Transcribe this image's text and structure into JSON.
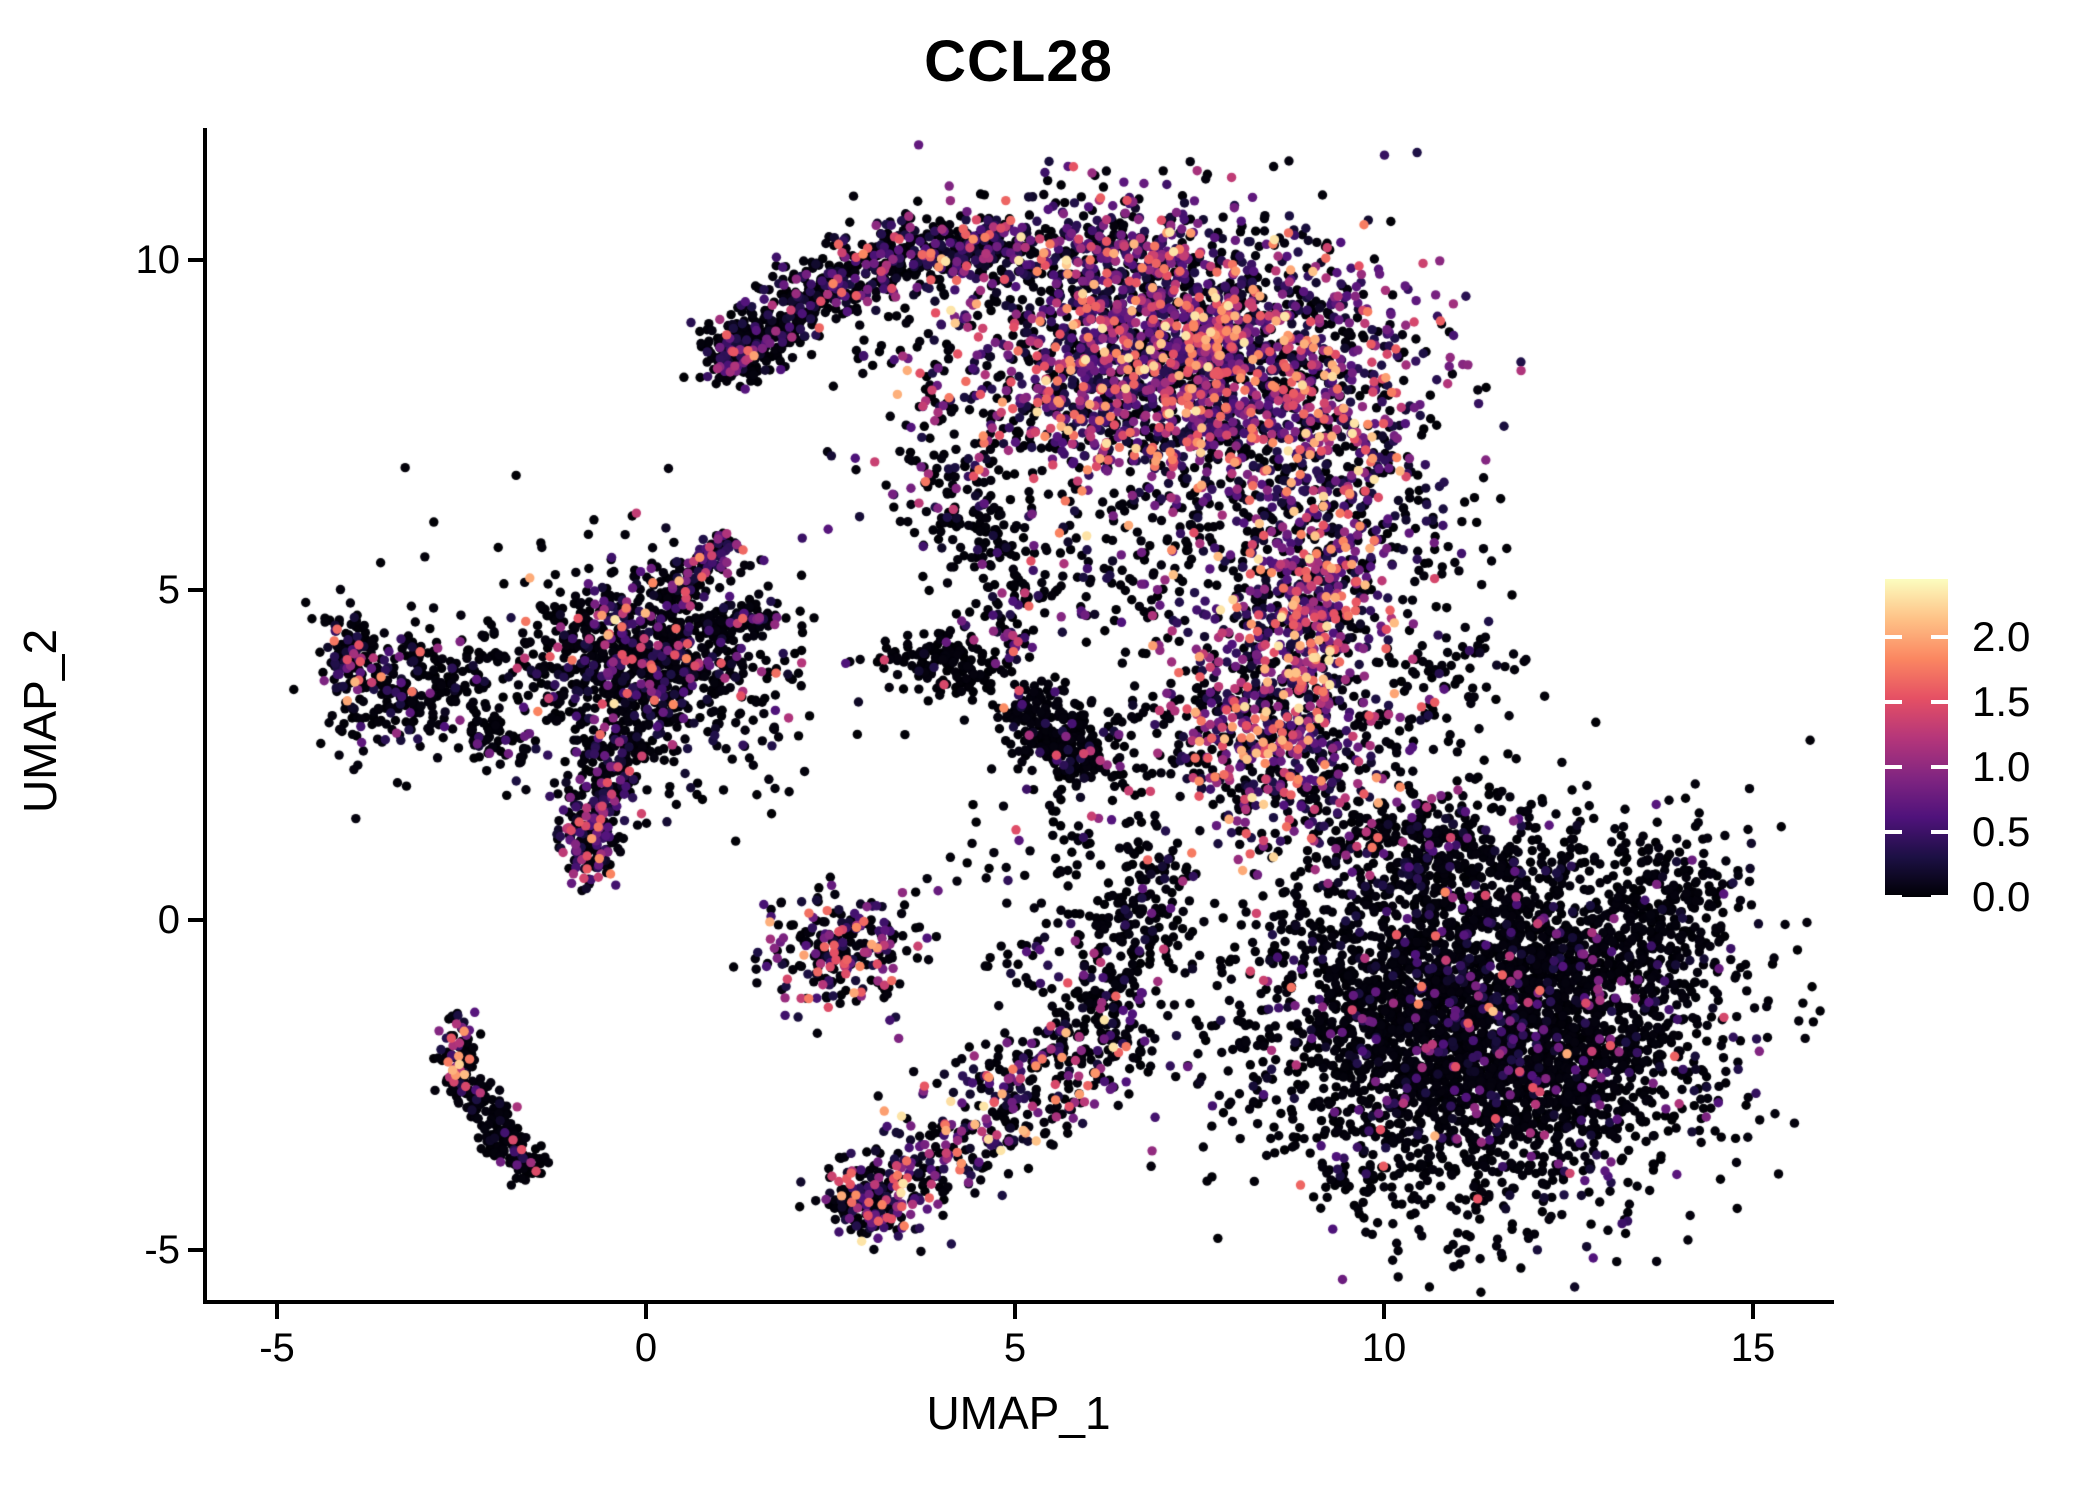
{
  "title": "CCL28",
  "axes": {
    "x_label": "UMAP_1",
    "y_label": "UMAP_2",
    "x_ticks": [
      "-5",
      "0",
      "5",
      "10",
      "15"
    ],
    "x_tick_values": [
      -5,
      0,
      5,
      10,
      15
    ],
    "y_ticks": [
      "-5",
      "0",
      "5",
      "10"
    ],
    "y_tick_values": [
      -5,
      0,
      5,
      10
    ],
    "axis_color": "#000000"
  },
  "colorbar": {
    "tick_labels": [
      "2.0",
      "1.5",
      "1.0",
      "0.5",
      "0.0"
    ],
    "tick_values": [
      2.0,
      1.5,
      1.0,
      0.5,
      0.0
    ],
    "vmin": 0.0,
    "vmax": 2.45,
    "tick_mark_color": "#ffffff"
  },
  "chart_data": {
    "type": "scatter",
    "title": "CCL28",
    "xlabel": "UMAP_1",
    "ylabel": "UMAP_2",
    "xlim": [
      -6.0,
      16.0
    ],
    "ylim": [
      -5.8,
      11.9
    ],
    "grid": false,
    "legend_position": "right",
    "point_radius_px": 4.7,
    "background": "#ffffff",
    "color_scale": {
      "name": "magma",
      "domain": [
        0,
        2.45
      ],
      "stops": [
        [
          0.0,
          "#000004"
        ],
        [
          0.125,
          "#1c1044"
        ],
        [
          0.25,
          "#4f127b"
        ],
        [
          0.375,
          "#812581"
        ],
        [
          0.5,
          "#b5367a"
        ],
        [
          0.625,
          "#e55064"
        ],
        [
          0.75,
          "#fb8761"
        ],
        [
          0.875,
          "#fec287"
        ],
        [
          1.0,
          "#fcfdbf"
        ]
      ]
    },
    "clusters": [
      {
        "name": "arc-tip",
        "kind": "blob",
        "cx": 1.25,
        "cy": 8.6,
        "sx": 0.25,
        "sy": 0.2,
        "rot": 35,
        "n": 130,
        "p0": 0.82,
        "vmean": 0.45
      },
      {
        "name": "arc-left-tail",
        "kind": "line",
        "x1": 1.0,
        "y1": 8.4,
        "x2": 2.55,
        "y2": 9.8,
        "w": 0.26,
        "n": 340,
        "p0": 0.78,
        "p0b": 0.6,
        "vmean": 0.5
      },
      {
        "name": "arc-top-band",
        "kind": "line",
        "x1": 2.55,
        "y1": 9.8,
        "x2": 4.9,
        "y2": 10.3,
        "w": 0.3,
        "n": 430,
        "p0": 0.62,
        "p0b": 0.45,
        "vmean": 0.6
      },
      {
        "name": "arc-top-edge",
        "kind": "line",
        "x1": 4.9,
        "y1": 10.3,
        "x2": 7.3,
        "y2": 9.95,
        "w": 0.35,
        "n": 260,
        "p0": 0.4,
        "vmean": 0.7
      },
      {
        "name": "arc-main",
        "kind": "blob",
        "cx": 7.35,
        "cy": 8.5,
        "sx": 1.45,
        "sy": 1.05,
        "rot": -10,
        "n": 2450,
        "p0": 0.33,
        "vmean": 0.8
      },
      {
        "name": "arc-inner-sparse",
        "kind": "blob",
        "cx": 4.35,
        "cy": 7.7,
        "sx": 0.85,
        "sy": 0.95,
        "rot": 0,
        "n": 180,
        "p0": 0.7,
        "vmean": 0.5
      },
      {
        "name": "arc-bottom-trail",
        "kind": "line",
        "x1": 3.9,
        "y1": 6.9,
        "x2": 5.2,
        "y2": 4.7,
        "w": 0.35,
        "n": 140,
        "p0": 0.75,
        "vmean": 0.5
      },
      {
        "name": "arc-right-protrusion",
        "kind": "blob",
        "cx": 9.6,
        "cy": 6.9,
        "sx": 0.4,
        "sy": 0.8,
        "rot": 0,
        "n": 150,
        "p0": 0.4,
        "vmean": 0.85
      },
      {
        "name": "neck-upper",
        "kind": "blob",
        "cx": 8.95,
        "cy": 4.9,
        "sx": 0.6,
        "sy": 0.85,
        "rot": 0,
        "n": 520,
        "p0": 0.3,
        "vmean": 0.9
      },
      {
        "name": "neck-lower",
        "kind": "blob",
        "cx": 8.5,
        "cy": 2.8,
        "sx": 0.75,
        "sy": 0.85,
        "rot": 0,
        "n": 680,
        "p0": 0.35,
        "vmean": 0.9
      },
      {
        "name": "neck-bridge-sparse",
        "kind": "blob",
        "cx": 7.0,
        "cy": 5.6,
        "sx": 0.85,
        "sy": 0.8,
        "rot": 0,
        "n": 170,
        "p0": 0.72,
        "vmean": 0.6
      },
      {
        "name": "neck-left-sparse",
        "kind": "blob",
        "cx": 6.6,
        "cy": 2.6,
        "sx": 0.7,
        "sy": 0.9,
        "rot": 0,
        "n": 110,
        "p0": 0.85,
        "vmean": 0.5
      },
      {
        "name": "right-of-neck-sparse",
        "kind": "blob",
        "cx": 10.8,
        "cy": 3.6,
        "sx": 0.5,
        "sy": 0.6,
        "rot": 0,
        "n": 90,
        "p0": 0.92,
        "vmean": 0.4
      },
      {
        "name": "above-mass-sparse",
        "kind": "blob",
        "cx": 10.4,
        "cy": 5.8,
        "sx": 0.6,
        "sy": 0.5,
        "rot": 0,
        "n": 70,
        "p0": 0.8,
        "vmean": 0.5
      },
      {
        "name": "big-black-mass",
        "kind": "blob",
        "cx": 11.4,
        "cy": -1.5,
        "sx": 1.55,
        "sy": 1.35,
        "rot": 0,
        "n": 3900,
        "p0": 0.88,
        "vmean": 0.45
      },
      {
        "name": "mass-right-tip",
        "kind": "blob",
        "cx": 13.95,
        "cy": 0.15,
        "sx": 0.45,
        "sy": 0.55,
        "rot": 0,
        "n": 170,
        "p0": 0.9,
        "vmean": 0.4
      },
      {
        "name": "mass-top-edge",
        "kind": "blob",
        "cx": 10.6,
        "cy": 1.1,
        "sx": 0.8,
        "sy": 0.45,
        "rot": 0,
        "n": 260,
        "p0": 0.82,
        "vmean": 0.5
      },
      {
        "name": "wing-band",
        "kind": "line",
        "x1": 3.05,
        "y1": -4.25,
        "x2": 6.55,
        "y2": -1.45,
        "w": 0.42,
        "n": 520,
        "p0": 0.38,
        "p0b": 0.72,
        "vmean": 0.85
      },
      {
        "name": "wing-tip",
        "kind": "blob",
        "cx": 2.95,
        "cy": -4.3,
        "sx": 0.3,
        "sy": 0.22,
        "rot": -30,
        "n": 130,
        "p0": 0.6,
        "vmean": 0.7
      },
      {
        "name": "wing-upper-sparse",
        "kind": "blob",
        "cx": 6.0,
        "cy": -0.3,
        "sx": 0.7,
        "sy": 0.75,
        "rot": 0,
        "n": 140,
        "p0": 0.82,
        "vmean": 0.5
      },
      {
        "name": "vertical-trail",
        "kind": "line",
        "x1": 6.45,
        "y1": -1.2,
        "x2": 7.0,
        "y2": 1.0,
        "w": 0.3,
        "n": 120,
        "p0": 0.88,
        "vmean": 0.4
      },
      {
        "name": "center-left-clump",
        "kind": "blob",
        "cx": 2.6,
        "cy": -0.4,
        "sx": 0.5,
        "sy": 0.45,
        "rot": 20,
        "n": 250,
        "p0": 0.55,
        "vmean": 0.8
      },
      {
        "name": "left-main",
        "kind": "blob",
        "cx": -0.05,
        "cy": 3.95,
        "sx": 0.85,
        "sy": 0.7,
        "rot": 0,
        "n": 850,
        "p0": 0.75,
        "vmean": 0.6
      },
      {
        "name": "left-halo",
        "kind": "blob",
        "cx": -0.3,
        "cy": 3.6,
        "sx": 1.5,
        "sy": 1.05,
        "rot": 0,
        "n": 220,
        "p0": 0.85,
        "vmean": 0.45
      },
      {
        "name": "left-blob2",
        "kind": "blob",
        "cx": -3.25,
        "cy": 3.55,
        "sx": 0.55,
        "sy": 0.45,
        "rot": 15,
        "n": 260,
        "p0": 0.78,
        "vmean": 0.5
      },
      {
        "name": "left-tip",
        "kind": "blob",
        "cx": -4.0,
        "cy": 4.1,
        "sx": 0.22,
        "sy": 0.32,
        "rot": 0,
        "n": 90,
        "p0": 0.62,
        "vmean": 0.6
      },
      {
        "name": "left-arm-upright",
        "kind": "line",
        "x1": 0.35,
        "y1": 4.95,
        "x2": 1.15,
        "y2": 5.8,
        "w": 0.14,
        "n": 100,
        "p0": 0.55,
        "vmean": 0.6
      },
      {
        "name": "left-arm-right",
        "kind": "line",
        "x1": 0.9,
        "y1": 4.5,
        "x2": 1.8,
        "y2": 4.6,
        "w": 0.12,
        "n": 70,
        "p0": 0.7,
        "vmean": 0.5
      },
      {
        "name": "left-arm-down",
        "kind": "line",
        "x1": -0.35,
        "y1": 2.8,
        "x2": -0.85,
        "y2": 1.05,
        "w": 0.22,
        "n": 230,
        "p0": 0.68,
        "p0b": 0.5,
        "vmean": 0.65
      },
      {
        "name": "left-arm-down-tip",
        "kind": "blob",
        "cx": -0.8,
        "cy": 1.0,
        "sx": 0.18,
        "sy": 0.25,
        "rot": 0,
        "n": 80,
        "p0": 0.5,
        "vmean": 0.7
      },
      {
        "name": "left-arm-misc",
        "kind": "line",
        "x1": -2.4,
        "y1": 2.9,
        "x2": -1.6,
        "y2": 2.5,
        "w": 0.18,
        "n": 60,
        "p0": 0.8,
        "vmean": 0.5
      },
      {
        "name": "hook-top",
        "kind": "blob",
        "cx": -2.55,
        "cy": -1.95,
        "sx": 0.13,
        "sy": 0.28,
        "rot": 0,
        "n": 70,
        "p0": 0.5,
        "vmean": 0.9
      },
      {
        "name": "hook-line",
        "kind": "line",
        "x1": -2.55,
        "y1": -2.3,
        "x2": -1.8,
        "y2": -3.5,
        "w": 0.15,
        "n": 160,
        "p0": 0.87,
        "vmean": 0.4
      },
      {
        "name": "hook-end",
        "kind": "blob",
        "cx": -1.62,
        "cy": -3.68,
        "sx": 0.16,
        "sy": 0.14,
        "rot": 0,
        "n": 45,
        "p0": 0.88,
        "vmean": 0.5
      },
      {
        "name": "x-cluster",
        "kind": "blob",
        "cx": 4.15,
        "cy": 3.85,
        "sx": 0.45,
        "sy": 0.28,
        "rot": -20,
        "n": 160,
        "p0": 0.9,
        "vmean": 0.4
      },
      {
        "name": "x-cluster-accent",
        "kind": "blob",
        "cx": 5.0,
        "cy": 4.2,
        "sx": 0.15,
        "sy": 0.2,
        "rot": 0,
        "n": 25,
        "p0": 0.35,
        "vmean": 0.8
      },
      {
        "name": "mid-diagonal",
        "kind": "line",
        "x1": 5.05,
        "y1": 3.35,
        "x2": 6.05,
        "y2": 2.2,
        "w": 0.26,
        "n": 250,
        "p0": 0.88,
        "vmean": 0.45
      },
      {
        "name": "mid-sparse",
        "kind": "blob",
        "cx": 5.4,
        "cy": 1.4,
        "sx": 1.0,
        "sy": 0.8,
        "rot": 0,
        "n": 50,
        "p0": 0.85,
        "vmean": 0.5
      },
      {
        "name": "upper-mid-sparse",
        "kind": "blob",
        "cx": 4.6,
        "cy": 5.6,
        "sx": 0.5,
        "sy": 0.6,
        "rot": 0,
        "n": 40,
        "p0": 0.8,
        "vmean": 0.5
      }
    ]
  }
}
